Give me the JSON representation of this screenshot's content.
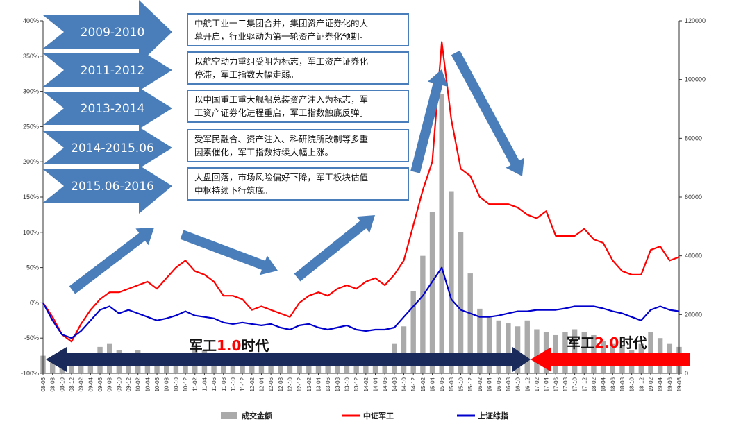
{
  "chart_data": {
    "type": "line",
    "left_axis": {
      "ticks": [
        "400%",
        "350%",
        "300%",
        "250%",
        "200%",
        "150%",
        "100%",
        "50%",
        "0%",
        "-50%",
        "-100%"
      ],
      "range": [
        -100,
        400
      ]
    },
    "right_axis": {
      "ticks": [
        "120000",
        "100000",
        "80000",
        "60000",
        "40000",
        "20000",
        "0"
      ],
      "range": [
        0,
        120000
      ]
    },
    "x_ticks": [
      "08-06",
      "08-08",
      "08-10",
      "08-12",
      "09-02",
      "09-04",
      "09-06",
      "09-08",
      "09-10",
      "09-12",
      "10-02",
      "10-04",
      "10-06",
      "10-08",
      "10-10",
      "10-12",
      "11-02",
      "11-04",
      "11-06",
      "11-08",
      "11-10",
      "11-12",
      "12-02",
      "12-04",
      "12-06",
      "12-08",
      "12-10",
      "12-12",
      "13-02",
      "13-04",
      "13-06",
      "13-08",
      "13-10",
      "13-12",
      "14-02",
      "14-04",
      "14-06",
      "14-08",
      "14-10",
      "14-12",
      "15-02",
      "15-04",
      "15-06",
      "15-08",
      "15-10",
      "15-12",
      "16-02",
      "16-04",
      "16-06",
      "16-08",
      "16-10",
      "16-12",
      "17-02",
      "17-04",
      "17-06",
      "17-08",
      "17-10",
      "17-12",
      "18-02",
      "18-04",
      "18-06",
      "18-08",
      "18-10",
      "18-12",
      "19-02",
      "19-04",
      "19-06",
      "19-08"
    ],
    "series": [
      {
        "name": "成交金额",
        "axis": "right",
        "kind": "bar",
        "color": "#aaaaaa",
        "values": [
          6000,
          4500,
          4000,
          3000,
          5000,
          7000,
          9000,
          10000,
          8000,
          7000,
          8000,
          6000,
          5000,
          6000,
          5000,
          7000,
          9000,
          8000,
          6000,
          5000,
          4000,
          4000,
          5000,
          6000,
          5000,
          4000,
          3000,
          4000,
          5000,
          7000,
          6000,
          5000,
          6000,
          7000,
          5000,
          6000,
          7000,
          10000,
          16000,
          28000,
          40000,
          55000,
          95000,
          62000,
          48000,
          34000,
          22000,
          19000,
          18000,
          17000,
          16000,
          18000,
          15000,
          14000,
          13000,
          14000,
          15000,
          14000,
          13000,
          11000,
          10000,
          9000,
          8000,
          10000,
          14000,
          12000,
          10000,
          9000
        ]
      },
      {
        "name": "中证军工",
        "axis": "left",
        "kind": "line",
        "color": "#ff0000",
        "values": [
          0,
          -20,
          -45,
          -55,
          -30,
          -10,
          5,
          15,
          15,
          20,
          25,
          30,
          20,
          35,
          50,
          60,
          45,
          40,
          30,
          10,
          10,
          5,
          -10,
          -5,
          -10,
          -15,
          -20,
          0,
          10,
          15,
          10,
          20,
          25,
          20,
          30,
          35,
          25,
          40,
          60,
          110,
          160,
          200,
          370,
          260,
          190,
          180,
          150,
          140,
          140,
          140,
          135,
          125,
          120,
          130,
          95,
          95,
          95,
          105,
          90,
          85,
          60,
          45,
          40,
          40,
          75,
          80,
          60,
          65
        ]
      },
      {
        "name": "上证综指",
        "axis": "left",
        "kind": "line",
        "color": "#0000cc",
        "values": [
          0,
          -25,
          -45,
          -50,
          -40,
          -25,
          -10,
          -5,
          -15,
          -10,
          -15,
          -20,
          -25,
          -22,
          -18,
          -12,
          -18,
          -20,
          -22,
          -28,
          -30,
          -28,
          -30,
          -32,
          -30,
          -35,
          -38,
          -32,
          -30,
          -35,
          -38,
          -35,
          -32,
          -38,
          -40,
          -38,
          -38,
          -35,
          -20,
          -5,
          10,
          30,
          50,
          5,
          -10,
          -15,
          -20,
          -20,
          -18,
          -15,
          -12,
          -12,
          -10,
          -10,
          -10,
          -8,
          -5,
          -5,
          -5,
          -8,
          -12,
          -15,
          -20,
          -25,
          -10,
          -5,
          -10,
          -12
        ]
      }
    ],
    "legend": {
      "placement": "bottom",
      "items": [
        {
          "label": "成交金额",
          "color": "#aaaaaa"
        },
        {
          "label": "中证军工",
          "color": "#ff0000"
        },
        {
          "label": "上证综指",
          "color": "#0000cc"
        }
      ]
    },
    "periods": [
      {
        "label": "2009-2010",
        "text": [
          "中航工业一二集团合并，集团资产证券化的大",
          "幕开启，行业驱动为第一轮资产证券化预期。"
        ]
      },
      {
        "label": "2011-2012",
        "text": [
          "以航空动力重组受阻为标志，军工资产证券化",
          "停滞，军工指数大幅走弱。"
        ]
      },
      {
        "label": "2013-2014",
        "text": [
          "以中国重工重大舰船总装资产注入为标志，军",
          "工资产证券化进程重启，军工指数触底反弹。"
        ]
      },
      {
        "label": "2014-2015.06",
        "text": [
          "受军民融合、资产注入、科研院所改制等多重",
          "因素催化，军工指数持续大幅上涨。"
        ]
      },
      {
        "label": "2015.06-2016",
        "text": [
          "大盘回落，市场风险偏好下降，军工板块估值",
          "中枢持续下行筑底。"
        ]
      }
    ],
    "eras": [
      {
        "prefix": "军工",
        "number": "1.0",
        "suffix": "时代",
        "arrow_color": "#1a2a5a",
        "number_color": "#ff0000"
      },
      {
        "prefix": "军工",
        "number": "2.0",
        "suffix": "时代",
        "arrow_color": "#ff0000",
        "number_color": "#ff0000"
      }
    ],
    "colors": {
      "chevron": "#4a7ebb",
      "trend_arrow": "#4a7ebb",
      "box_border": "#4a7ebb"
    }
  }
}
